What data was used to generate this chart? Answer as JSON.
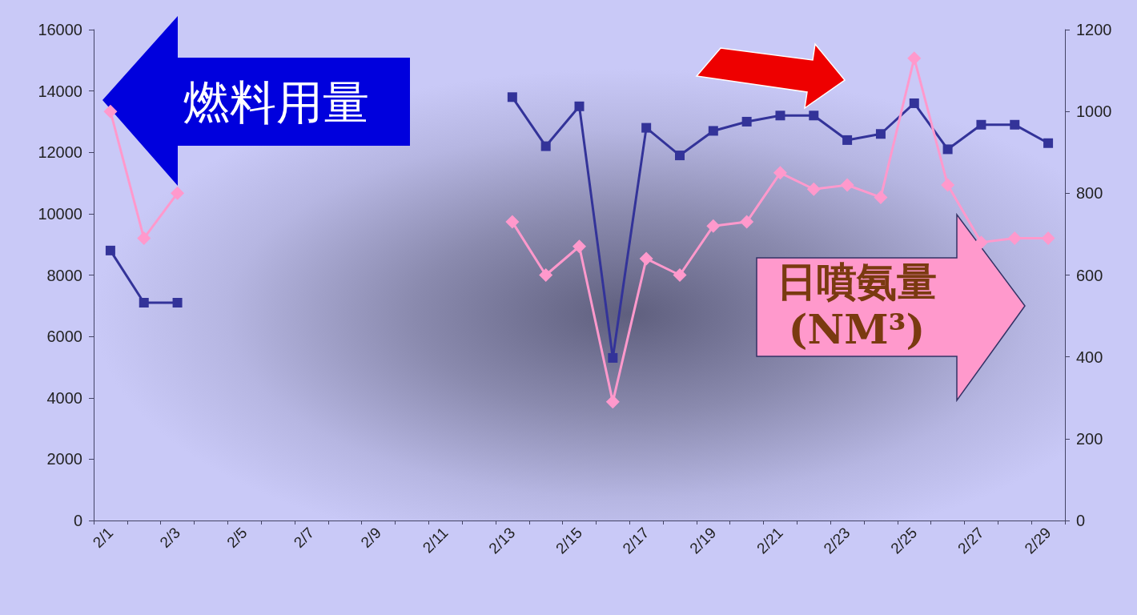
{
  "chart_data": {
    "type": "line",
    "ylabel": "燃料用量",
    "y2label": "日噴氨量 (NM³)",
    "categories": [
      "2/1",
      null,
      "2/3",
      null,
      "2/5",
      null,
      "2/7",
      null,
      "2/9",
      null,
      "2/11",
      null,
      "2/13",
      null,
      "2/15",
      null,
      "2/17",
      null,
      "2/19",
      null,
      "2/21",
      null,
      "2/23",
      null,
      "2/25",
      null,
      "2/27",
      null,
      "2/29"
    ],
    "series": [
      {
        "color": "#333399",
        "marker": "square",
        "values": [
          8800,
          7100,
          7100,
          null,
          null,
          null,
          null,
          null,
          null,
          null,
          null,
          null,
          13800,
          12200,
          13500,
          5300,
          12800,
          11900,
          12700,
          13000,
          13200,
          13200,
          12400,
          12600,
          13600,
          12100,
          12900,
          12900,
          12300
        ]
      },
      {
        "color": "#ff99cc",
        "marker": "diamond",
        "axis": "y2",
        "values": [
          1000,
          690,
          800,
          null,
          null,
          null,
          null,
          null,
          null,
          null,
          null,
          null,
          730,
          600,
          670,
          290,
          640,
          600,
          720,
          730,
          850,
          810,
          820,
          790,
          1130,
          820,
          680,
          690,
          690
        ]
      }
    ],
    "ylim": [
      0,
      16000
    ],
    "yticks": [
      0,
      2000,
      4000,
      6000,
      8000,
      10000,
      12000,
      14000,
      16000
    ],
    "y2lim": [
      0,
      1200
    ],
    "y2ticks": [
      0,
      200,
      400,
      600,
      800,
      1000,
      1200
    ],
    "grid": false,
    "line_style": "solid"
  }
}
